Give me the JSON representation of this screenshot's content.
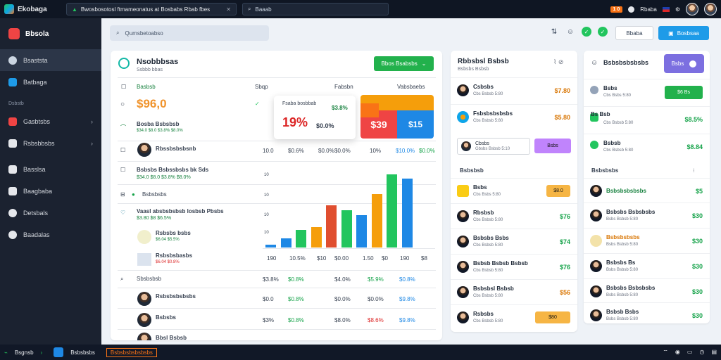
{
  "topbar": {
    "app_name": "Ekobaga",
    "url_text": "Bwosbosotosl ftmameonatus at Bosbabs Rbab fbes",
    "search_text": "Baaab",
    "badge": "1 0",
    "user_label": "Rbaba"
  },
  "sidebar": {
    "brand": "Bbsola",
    "items": [
      {
        "label": "Bsaststa",
        "active": true
      },
      {
        "label": "Batbaga"
      },
      {
        "label": "Gasbtsbs",
        "chevron": true
      },
      {
        "label": "Rsbsbbsbs",
        "chevron": true
      },
      {
        "label": "Basslsa"
      },
      {
        "label": "Baagbaba"
      },
      {
        "label": "Detsbals"
      },
      {
        "label": "Baadalas"
      }
    ],
    "section_label": "Dsbstb"
  },
  "header": {
    "search_placeholder": "Qumsbetoabso",
    "outline_button": "Bbaba",
    "primary_button": "Bosbsaa"
  },
  "main": {
    "title": "Nsobbbsas",
    "subtitle": "Ssbbb bbas",
    "action_button": "Bbos Bsabsbs",
    "col_headers": [
      "Basbsb",
      "Sbqp",
      "Fabsbn",
      "Vabsbaebs"
    ],
    "hero_value": "$96,0",
    "hero_sub": "Bosba Bsbsbsb",
    "popover": {
      "title": "Fsaba bosbbab",
      "tag": "$3.8%",
      "big": "19%",
      "mid": "$0.0%"
    },
    "tile": {
      "left": "$39",
      "right": "$15"
    },
    "rows": [
      {
        "label": "Rbssbsbsbsnb",
        "vals": [
          "10.0",
          "$0.6%",
          "$0.0%",
          "$0.0%",
          "10%",
          "$10.0%",
          "$0.0%"
        ]
      },
      {
        "label": "Bsbsbs Bsbssbsbs bk Sds",
        "sub": "$34.0 $8.0 $3.8% $8.0%"
      },
      {
        "label": "Bsbsbsbs"
      },
      {
        "label": "Vaasl absbsbsbsb losbsb Pbsbs",
        "sub": "$3.80  $8  $6.5%"
      },
      {
        "label": "Rsbsbs bsbs",
        "sub": "$6.04 $5.5%"
      },
      {
        "label": "Rsbsbsbasbs",
        "sub": "$6.04 $0.8%"
      },
      {
        "label": "Sbsbsbsb",
        "vals": [
          "$3.8%",
          "$0.8%",
          "$4.0%",
          "$5.9%",
          "$0.8%"
        ]
      },
      {
        "label": "Rsbsbsbsbsbs",
        "vals": [
          "$0.0",
          "$0.8%",
          "$0.0%",
          "$0.0%",
          "$9.8%"
        ]
      },
      {
        "label": "Bsbsbs",
        "vals": [
          "$3%",
          "$0.8%",
          "$8.0%",
          "$8.6%",
          "$9.8%"
        ]
      },
      {
        "label": "Bbsl Bsbsb"
      }
    ],
    "chart_axis": [
      "10",
      "10",
      "10",
      "10",
      "10"
    ],
    "chart_x": [
      "190",
      "10.5%",
      "$10",
      "$0.00",
      "1.50",
      "$0",
      "190",
      "$8"
    ]
  },
  "chart_data": {
    "type": "bar",
    "values": [
      3,
      10,
      20,
      23,
      47,
      42,
      36,
      60,
      82,
      77
    ],
    "colors": [
      "#1e88e5",
      "#1e88e5",
      "#22c55e",
      "#f59e0b",
      "#e04e2f",
      "#22c55e",
      "#1e88e5",
      "#f59e0b",
      "#22c55e",
      "#1e88e5"
    ],
    "ylim": [
      0,
      90
    ]
  },
  "mid": {
    "title": "Rbbsbsl Bsbsb",
    "sub": "Bsbsbs Bsbsb",
    "top_rows": [
      {
        "name": "Csbsbs",
        "sub": "Cbs Bsbsb 5:80",
        "value": "$7.80",
        "color": "#d97706"
      },
      {
        "name": "Fsbsbsbsbsbs",
        "sub": "Cbs Bsbsb 5:80",
        "value": "$5.80",
        "color": "#d97706"
      }
    ],
    "search_value": "Cbsbs",
    "search_sub": "Gbsbs Bsbsb 5:10",
    "purple_button": "Bsbs",
    "section": "Bsbsbsb",
    "list": [
      {
        "name": "Bsbs",
        "sub": "Cbs Bsbs 5:80",
        "badge": "$8.0",
        "badge_color": "#f6b544"
      },
      {
        "name": "Rbsbsb",
        "sub": "Cbs Bsbsb 5:80",
        "value": "$76",
        "color": "#16a34a"
      },
      {
        "name": "Bsbsbs Bsbs",
        "sub": "Cbs Bsbsb 5:80",
        "value": "$74",
        "color": "#16a34a"
      },
      {
        "name": "Bsbsb Bsbsb Bsbsb",
        "sub": "Cbs Bsbsb 5:80",
        "value": "$76",
        "color": "#16a34a"
      },
      {
        "name": "Bsbsbsl Bsbsb",
        "sub": "Cbs Bsbsb 5:80",
        "value": "$56",
        "color": "#d97706"
      },
      {
        "name": "Rsbsbs",
        "sub": "Cbs Bsbsb 5:80",
        "badge": "$80",
        "badge_color": "#f6b544"
      }
    ]
  },
  "rightcard": {
    "title": "Bsbsbsbsbsbs",
    "toggle": "Bsbs",
    "top_rows": [
      {
        "name": "Bsbs",
        "sub": "Cbs Bsbs 5:80",
        "button": "$6 Bs"
      },
      {
        "name": "Bs Bsb",
        "sub": "Cbs Bsbsb 5:80",
        "value": "$8.5%"
      },
      {
        "name": "Bsbsb",
        "sub": "Cbs Bsbsb 5:80",
        "value": "$8.84"
      }
    ],
    "section": "Bsbsbsbs",
    "list": [
      {
        "name": "Bsbsbsbsbsbs",
        "value": "$5"
      },
      {
        "name": "Bsbsbs Bsbsbsbs",
        "sub": "Bsbs Bsbsb 5:80",
        "value": "$30"
      },
      {
        "name": "Bsbsbsbsbs",
        "sub": "Bsbs Bsbsb 5:80",
        "value": "$30"
      },
      {
        "name": "Bsbsbs Bs",
        "sub": "Bsbs Bsbsb 5:80",
        "value": "$30"
      },
      {
        "name": "Bsbsbs Bsbsbsbs",
        "sub": "Bsbs Bsbsb 5:80",
        "value": "$30"
      },
      {
        "name": "Bsbsb Bsbs",
        "sub": "Bsbs Bsbsb 5:80",
        "value": "$30"
      }
    ]
  },
  "taskbar": {
    "items": [
      "Bsgnsb",
      "Bsbsbsbs",
      "Bsbsbsbsbsbsbs"
    ]
  }
}
